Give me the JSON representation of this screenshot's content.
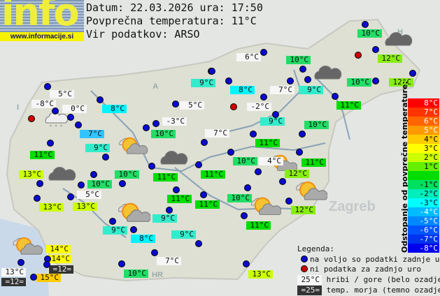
{
  "header": {
    "logo": "info",
    "url": "www.informacije.si",
    "date_line": "Datum: 22.03.2026 ura: 17:50",
    "avg_line": "Povprečna temperatura: 11°C",
    "source_line": "Vir podatkov: ARSO"
  },
  "map_labels": [
    "A",
    "I",
    "H",
    "HR",
    "Zagreb"
  ],
  "colors": {
    "white": "#f6f6f6",
    "sea": "#333333",
    "c7": "#33c4ff",
    "c8": "#00f4ff",
    "c9": "#33eccc",
    "c10": "#22dd66",
    "c11": "#00dd00",
    "c12": "#88ee11",
    "c13": "#ccff00",
    "c14": "#ffff00",
    "c15": "#ffcc00",
    "ok_dot": "#0a0ad0",
    "missing_dot": "#d00000"
  },
  "labels": [
    {
      "t": "5°C",
      "k": "white"
    },
    {
      "t": "-8°C",
      "k": "white"
    },
    {
      "t": "0°C",
      "k": "white"
    },
    {
      "t": "8°C",
      "k": "c8"
    },
    {
      "t": "7°C",
      "k": "c7"
    },
    {
      "t": "9°C",
      "k": "c9"
    },
    {
      "t": "11°C",
      "k": "c11"
    },
    {
      "t": "-3°C",
      "k": "white"
    },
    {
      "t": "10°C",
      "k": "c10"
    },
    {
      "t": "5°C",
      "k": "white"
    },
    {
      "t": "9°C",
      "k": "c9"
    },
    {
      "t": "7°C",
      "k": "white"
    },
    {
      "t": "10°C",
      "k": "c10"
    },
    {
      "t": "12°C",
      "k": "c12"
    },
    {
      "t": "12°C",
      "k": "c12"
    },
    {
      "t": "10°C",
      "k": "c10"
    },
    {
      "t": "6°C",
      "k": "white"
    },
    {
      "t": "10°C",
      "k": "c10"
    },
    {
      "t": "8°C",
      "k": "c8"
    },
    {
      "t": "7°C",
      "k": "white"
    },
    {
      "t": "9°C",
      "k": "c9"
    },
    {
      "t": "11°C",
      "k": "c11"
    },
    {
      "t": "-2°C",
      "k": "white"
    },
    {
      "t": "9°C",
      "k": "c9"
    },
    {
      "t": "10°C",
      "k": "c10"
    },
    {
      "t": "11°C",
      "k": "c11"
    },
    {
      "t": "10°C",
      "k": "c10"
    },
    {
      "t": "4°C",
      "k": "white"
    },
    {
      "t": "11°C",
      "k": "c11"
    },
    {
      "t": "12°C",
      "k": "c12"
    },
    {
      "t": "10°C",
      "k": "c10"
    },
    {
      "t": "12°C",
      "k": "c12"
    },
    {
      "t": "11°C",
      "k": "c11"
    },
    {
      "t": "13°C",
      "k": "c13"
    },
    {
      "t": "13°C",
      "k": "c13"
    },
    {
      "t": "10°C",
      "k": "c10"
    },
    {
      "t": "5°C",
      "k": "white"
    },
    {
      "t": "10°C",
      "k": "c10"
    },
    {
      "t": "11°C",
      "k": "c11"
    },
    {
      "t": "11°C",
      "k": "c11"
    },
    {
      "t": "13°C",
      "k": "c13"
    },
    {
      "t": "13°C",
      "k": "c13"
    },
    {
      "t": "11°C",
      "k": "c11"
    },
    {
      "t": "11°C",
      "k": "c11"
    },
    {
      "t": "9°C",
      "k": "c9"
    },
    {
      "t": "9°C",
      "k": "c9"
    },
    {
      "t": "8°C",
      "k": "c8"
    },
    {
      "t": "9°C",
      "k": "c9"
    },
    {
      "t": "7°C",
      "k": "white"
    },
    {
      "t": "10°C",
      "k": "c10"
    },
    {
      "t": "14°C",
      "k": "c14"
    },
    {
      "t": "14°C",
      "k": "c14"
    },
    {
      "t": "=12=",
      "k": "sea"
    },
    {
      "t": "13°C",
      "k": "white"
    },
    {
      "t": "=12=",
      "k": "sea"
    },
    {
      "t": "15°C",
      "k": "c15"
    }
  ],
  "station_status": {
    "ok_count": 55,
    "missing_count": 3
  },
  "icons": [
    "cloud-snow-icon",
    "sun-cloud-icon",
    "dark-cloud-icon",
    "dark-cloud-icon",
    "dark-cloud-icon",
    "sun-cloud-icon",
    "sun-cloud-icon",
    "sun-cloud-icon",
    "dark-cloud-icon",
    "sun-cloud-icon",
    "sun-cloud-icon"
  ],
  "scale": {
    "title": "Odstopanje od povprečne temperature:",
    "rows": [
      {
        "t": "8°C",
        "c": "#ff0000"
      },
      {
        "t": "7°C",
        "c": "#ff3300"
      },
      {
        "t": "6°C",
        "c": "#ff6600"
      },
      {
        "t": "5°C",
        "c": "#ff9900"
      },
      {
        "t": "4°C",
        "c": "#ffcc00"
      },
      {
        "t": "3°C",
        "c": "#ffff00"
      },
      {
        "t": "2°C",
        "c": "#ccff00"
      },
      {
        "t": "1°C",
        "c": "#66ee00"
      },
      {
        "t": "",
        "c": "#00dd00"
      },
      {
        "t": "-1°C",
        "c": "#00e060"
      },
      {
        "t": "-2°C",
        "c": "#00eebb"
      },
      {
        "t": "-3°C",
        "c": "#00ffff"
      },
      {
        "t": "-4°C",
        "c": "#00bbff"
      },
      {
        "t": "-5°C",
        "c": "#0088ff"
      },
      {
        "t": "-6°C",
        "c": "#0055ff"
      },
      {
        "t": "-7°C",
        "c": "#0033ee"
      },
      {
        "t": "-8°C",
        "c": "#0000ee"
      }
    ]
  },
  "legend": {
    "title": "Legenda:",
    "ok": "na voljo so podatki zadnje ure",
    "missing": "ni podatka za zadnjo uro",
    "mountain_sample": "25°C",
    "mountain_text": "hribi / gore (belo ozadje)",
    "sea_sample": "=25=",
    "sea_text": "temp. morja (temno ozadje)"
  }
}
